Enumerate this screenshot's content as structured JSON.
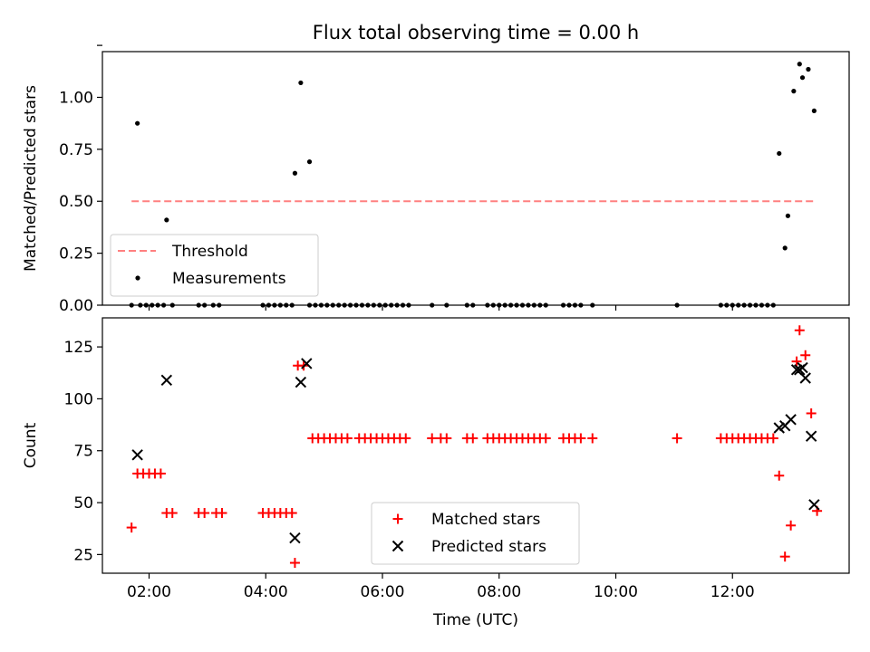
{
  "chart_data": [
    {
      "type": "scatter",
      "title": "Flux total observing time = 0.00 h",
      "ylabel": "Matched/Predicted stars",
      "xlabel": "",
      "ylim": [
        0,
        1.22
      ],
      "xlim": [
        "01:12",
        "14:00"
      ],
      "yticks": [
        0.0,
        0.25,
        0.5,
        0.75,
        1.0,
        1.25
      ],
      "ytick_labels": [
        "0.00",
        "0.25",
        "0.50",
        "0.75",
        "1.00",
        ""
      ],
      "xticks": [
        "02:00",
        "04:00",
        "06:00",
        "08:00",
        "10:00",
        "12:00"
      ],
      "show_xtick_labels": false,
      "grid": false,
      "legend_position": "lower-left",
      "colors": {
        "threshold": "#ff8080",
        "measurements": "#000000"
      },
      "threshold": {
        "name": "Threshold",
        "value": 0.5,
        "x_start": "01:42",
        "x_end": "13:24",
        "style": "dashed"
      },
      "series": [
        {
          "name": "Measurements",
          "marker": "dot",
          "points": [
            [
              "01:48",
              0.875
            ],
            [
              "02:18",
              0.41
            ],
            [
              "04:30",
              0.635
            ],
            [
              "04:36",
              1.07
            ],
            [
              "04:45",
              0.69
            ],
            [
              "12:48",
              0.73
            ],
            [
              "12:54",
              0.275
            ],
            [
              "12:57",
              0.43
            ],
            [
              "13:03",
              1.03
            ],
            [
              "13:09",
              1.16
            ],
            [
              "13:12",
              1.095
            ],
            [
              "13:18",
              1.135
            ],
            [
              "13:24",
              0.935
            ],
            [
              "01:42",
              0
            ],
            [
              "01:51",
              0
            ],
            [
              "01:57",
              0
            ],
            [
              "02:03",
              0
            ],
            [
              "02:09",
              0
            ],
            [
              "02:15",
              0
            ],
            [
              "02:24",
              0
            ],
            [
              "02:51",
              0
            ],
            [
              "02:57",
              0
            ],
            [
              "03:06",
              0
            ],
            [
              "03:12",
              0
            ],
            [
              "03:57",
              0
            ],
            [
              "04:03",
              0
            ],
            [
              "04:09",
              0
            ],
            [
              "04:15",
              0
            ],
            [
              "04:21",
              0
            ],
            [
              "04:27",
              0
            ],
            [
              "04:45",
              0
            ],
            [
              "04:51",
              0
            ],
            [
              "04:57",
              0
            ],
            [
              "05:03",
              0
            ],
            [
              "05:09",
              0
            ],
            [
              "05:15",
              0
            ],
            [
              "05:21",
              0
            ],
            [
              "05:27",
              0
            ],
            [
              "05:33",
              0
            ],
            [
              "05:39",
              0
            ],
            [
              "05:45",
              0
            ],
            [
              "05:51",
              0
            ],
            [
              "05:57",
              0
            ],
            [
              "06:03",
              0
            ],
            [
              "06:09",
              0
            ],
            [
              "06:15",
              0
            ],
            [
              "06:21",
              0
            ],
            [
              "06:27",
              0
            ],
            [
              "06:51",
              0
            ],
            [
              "07:06",
              0
            ],
            [
              "07:27",
              0
            ],
            [
              "07:33",
              0
            ],
            [
              "07:48",
              0
            ],
            [
              "07:54",
              0
            ],
            [
              "08:00",
              0
            ],
            [
              "08:06",
              0
            ],
            [
              "08:12",
              0
            ],
            [
              "08:18",
              0
            ],
            [
              "08:24",
              0
            ],
            [
              "08:30",
              0
            ],
            [
              "08:36",
              0
            ],
            [
              "08:42",
              0
            ],
            [
              "08:48",
              0
            ],
            [
              "09:06",
              0
            ],
            [
              "09:12",
              0
            ],
            [
              "09:18",
              0
            ],
            [
              "09:24",
              0
            ],
            [
              "09:36",
              0
            ],
            [
              "11:03",
              0
            ],
            [
              "11:48",
              0
            ],
            [
              "11:54",
              0
            ],
            [
              "12:00",
              0
            ],
            [
              "12:06",
              0
            ],
            [
              "12:12",
              0
            ],
            [
              "12:18",
              0
            ],
            [
              "12:24",
              0
            ],
            [
              "12:30",
              0
            ],
            [
              "12:36",
              0
            ],
            [
              "12:42",
              0
            ]
          ]
        }
      ]
    },
    {
      "type": "scatter",
      "title": "",
      "ylabel": "Count",
      "xlabel": "Time (UTC)",
      "ylim": [
        16,
        139
      ],
      "xlim": [
        "01:12",
        "14:00"
      ],
      "yticks": [
        25,
        50,
        75,
        100,
        125
      ],
      "ytick_labels": [
        "25",
        "50",
        "75",
        "100",
        "125"
      ],
      "xticks": [
        "02:00",
        "04:00",
        "06:00",
        "08:00",
        "10:00",
        "12:00"
      ],
      "show_xtick_labels": true,
      "grid": false,
      "legend_position": "lower-center",
      "colors": {
        "matched": "#ff0000",
        "predicted": "#000000"
      },
      "series": [
        {
          "name": "Matched stars",
          "marker": "plus",
          "points": [
            [
              "01:42",
              38
            ],
            [
              "01:48",
              64
            ],
            [
              "01:54",
              64
            ],
            [
              "02:00",
              64
            ],
            [
              "02:06",
              64
            ],
            [
              "02:12",
              64
            ],
            [
              "02:18",
              45
            ],
            [
              "02:24",
              45
            ],
            [
              "02:51",
              45
            ],
            [
              "02:57",
              45
            ],
            [
              "03:09",
              45
            ],
            [
              "03:15",
              45
            ],
            [
              "03:57",
              45
            ],
            [
              "04:03",
              45
            ],
            [
              "04:09",
              45
            ],
            [
              "04:15",
              45
            ],
            [
              "04:21",
              45
            ],
            [
              "04:27",
              45
            ],
            [
              "04:30",
              21
            ],
            [
              "04:33",
              116
            ],
            [
              "04:39",
              116
            ],
            [
              "04:48",
              81
            ],
            [
              "04:54",
              81
            ],
            [
              "05:00",
              81
            ],
            [
              "05:06",
              81
            ],
            [
              "05:12",
              81
            ],
            [
              "05:18",
              81
            ],
            [
              "05:24",
              81
            ],
            [
              "05:36",
              81
            ],
            [
              "05:42",
              81
            ],
            [
              "05:48",
              81
            ],
            [
              "05:54",
              81
            ],
            [
              "06:00",
              81
            ],
            [
              "06:06",
              81
            ],
            [
              "06:12",
              81
            ],
            [
              "06:18",
              81
            ],
            [
              "06:24",
              81
            ],
            [
              "06:51",
              81
            ],
            [
              "07:00",
              81
            ],
            [
              "07:06",
              81
            ],
            [
              "07:27",
              81
            ],
            [
              "07:33",
              81
            ],
            [
              "07:48",
              81
            ],
            [
              "07:54",
              81
            ],
            [
              "08:00",
              81
            ],
            [
              "08:06",
              81
            ],
            [
              "08:12",
              81
            ],
            [
              "08:18",
              81
            ],
            [
              "08:24",
              81
            ],
            [
              "08:30",
              81
            ],
            [
              "08:36",
              81
            ],
            [
              "08:42",
              81
            ],
            [
              "08:48",
              81
            ],
            [
              "09:06",
              81
            ],
            [
              "09:12",
              81
            ],
            [
              "09:18",
              81
            ],
            [
              "09:24",
              81
            ],
            [
              "09:36",
              81
            ],
            [
              "11:03",
              81
            ],
            [
              "11:48",
              81
            ],
            [
              "11:54",
              81
            ],
            [
              "12:00",
              81
            ],
            [
              "12:06",
              81
            ],
            [
              "12:12",
              81
            ],
            [
              "12:18",
              81
            ],
            [
              "12:24",
              81
            ],
            [
              "12:30",
              81
            ],
            [
              "12:36",
              81
            ],
            [
              "12:42",
              81
            ],
            [
              "12:48",
              63
            ],
            [
              "12:54",
              24
            ],
            [
              "13:00",
              39
            ],
            [
              "13:06",
              118
            ],
            [
              "13:09",
              133
            ],
            [
              "13:15",
              121
            ],
            [
              "13:21",
              93
            ],
            [
              "13:27",
              46
            ]
          ]
        },
        {
          "name": "Predicted stars",
          "marker": "x",
          "points": [
            [
              "01:48",
              73
            ],
            [
              "02:18",
              109
            ],
            [
              "04:30",
              33
            ],
            [
              "04:36",
              108
            ],
            [
              "04:42",
              117
            ],
            [
              "12:48",
              86
            ],
            [
              "12:54",
              87
            ],
            [
              "13:00",
              90
            ],
            [
              "13:06",
              114
            ],
            [
              "13:09",
              114
            ],
            [
              "13:12",
              115
            ],
            [
              "13:15",
              110
            ],
            [
              "13:21",
              82
            ],
            [
              "13:24",
              49
            ]
          ]
        }
      ]
    }
  ]
}
